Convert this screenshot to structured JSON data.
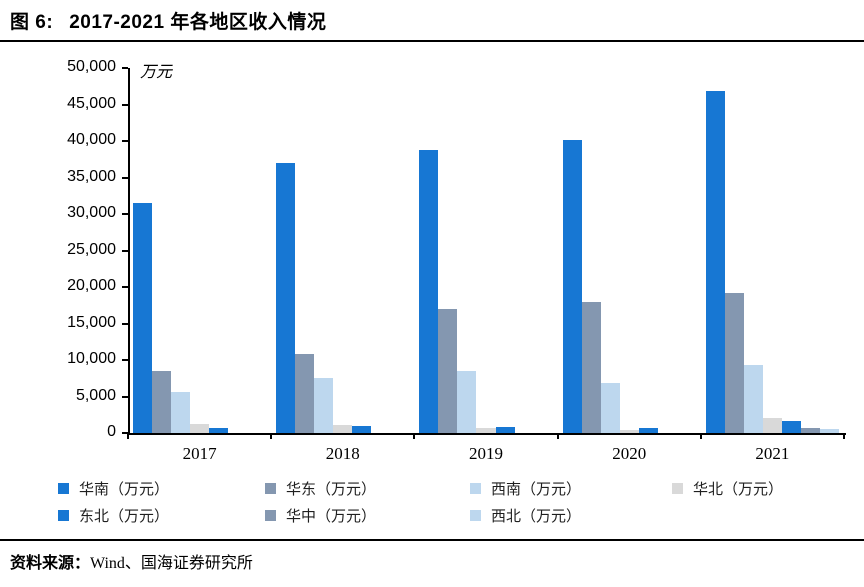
{
  "header": {
    "figure_label": "图 6:",
    "title": "2017-2021 年各地区收入情况"
  },
  "footer": {
    "source_label": "资料来源：",
    "source_text": "Wind、国海证券研究所"
  },
  "chart_data": {
    "type": "bar",
    "title": "2017-2021 年各地区收入情况",
    "xlabel": "",
    "ylabel": "万元",
    "ylim": [
      0,
      50000
    ],
    "ytick_step": 5000,
    "grid": false,
    "legend_position": "bottom",
    "categories": [
      "2017",
      "2018",
      "2019",
      "2020",
      "2021"
    ],
    "series": [
      {
        "name": "华南（万元）",
        "color": "#1777d3",
        "values": [
          31500,
          37000,
          38800,
          40200,
          46800
        ]
      },
      {
        "name": "华东（万元）",
        "color": "#8497b0",
        "values": [
          8500,
          10800,
          17000,
          17900,
          19200
        ]
      },
      {
        "name": "西南（万元）",
        "color": "#bdd7ee",
        "values": [
          5600,
          7500,
          8500,
          6900,
          9300
        ]
      },
      {
        "name": "华北（万元）",
        "color": "#d9d9d9",
        "values": [
          1300,
          1150,
          650,
          450,
          2100
        ]
      },
      {
        "name": "东北（万元）",
        "color": "#1777d3",
        "values": [
          650,
          900,
          850,
          700,
          1700
        ]
      },
      {
        "name": "华中（万元）",
        "color": "#8497b0",
        "values": [
          0,
          0,
          0,
          0,
          750
        ]
      },
      {
        "name": "西北（万元）",
        "color": "#bdd7ee",
        "values": [
          0,
          0,
          0,
          0,
          550
        ]
      }
    ],
    "axis_color": "#000000"
  }
}
